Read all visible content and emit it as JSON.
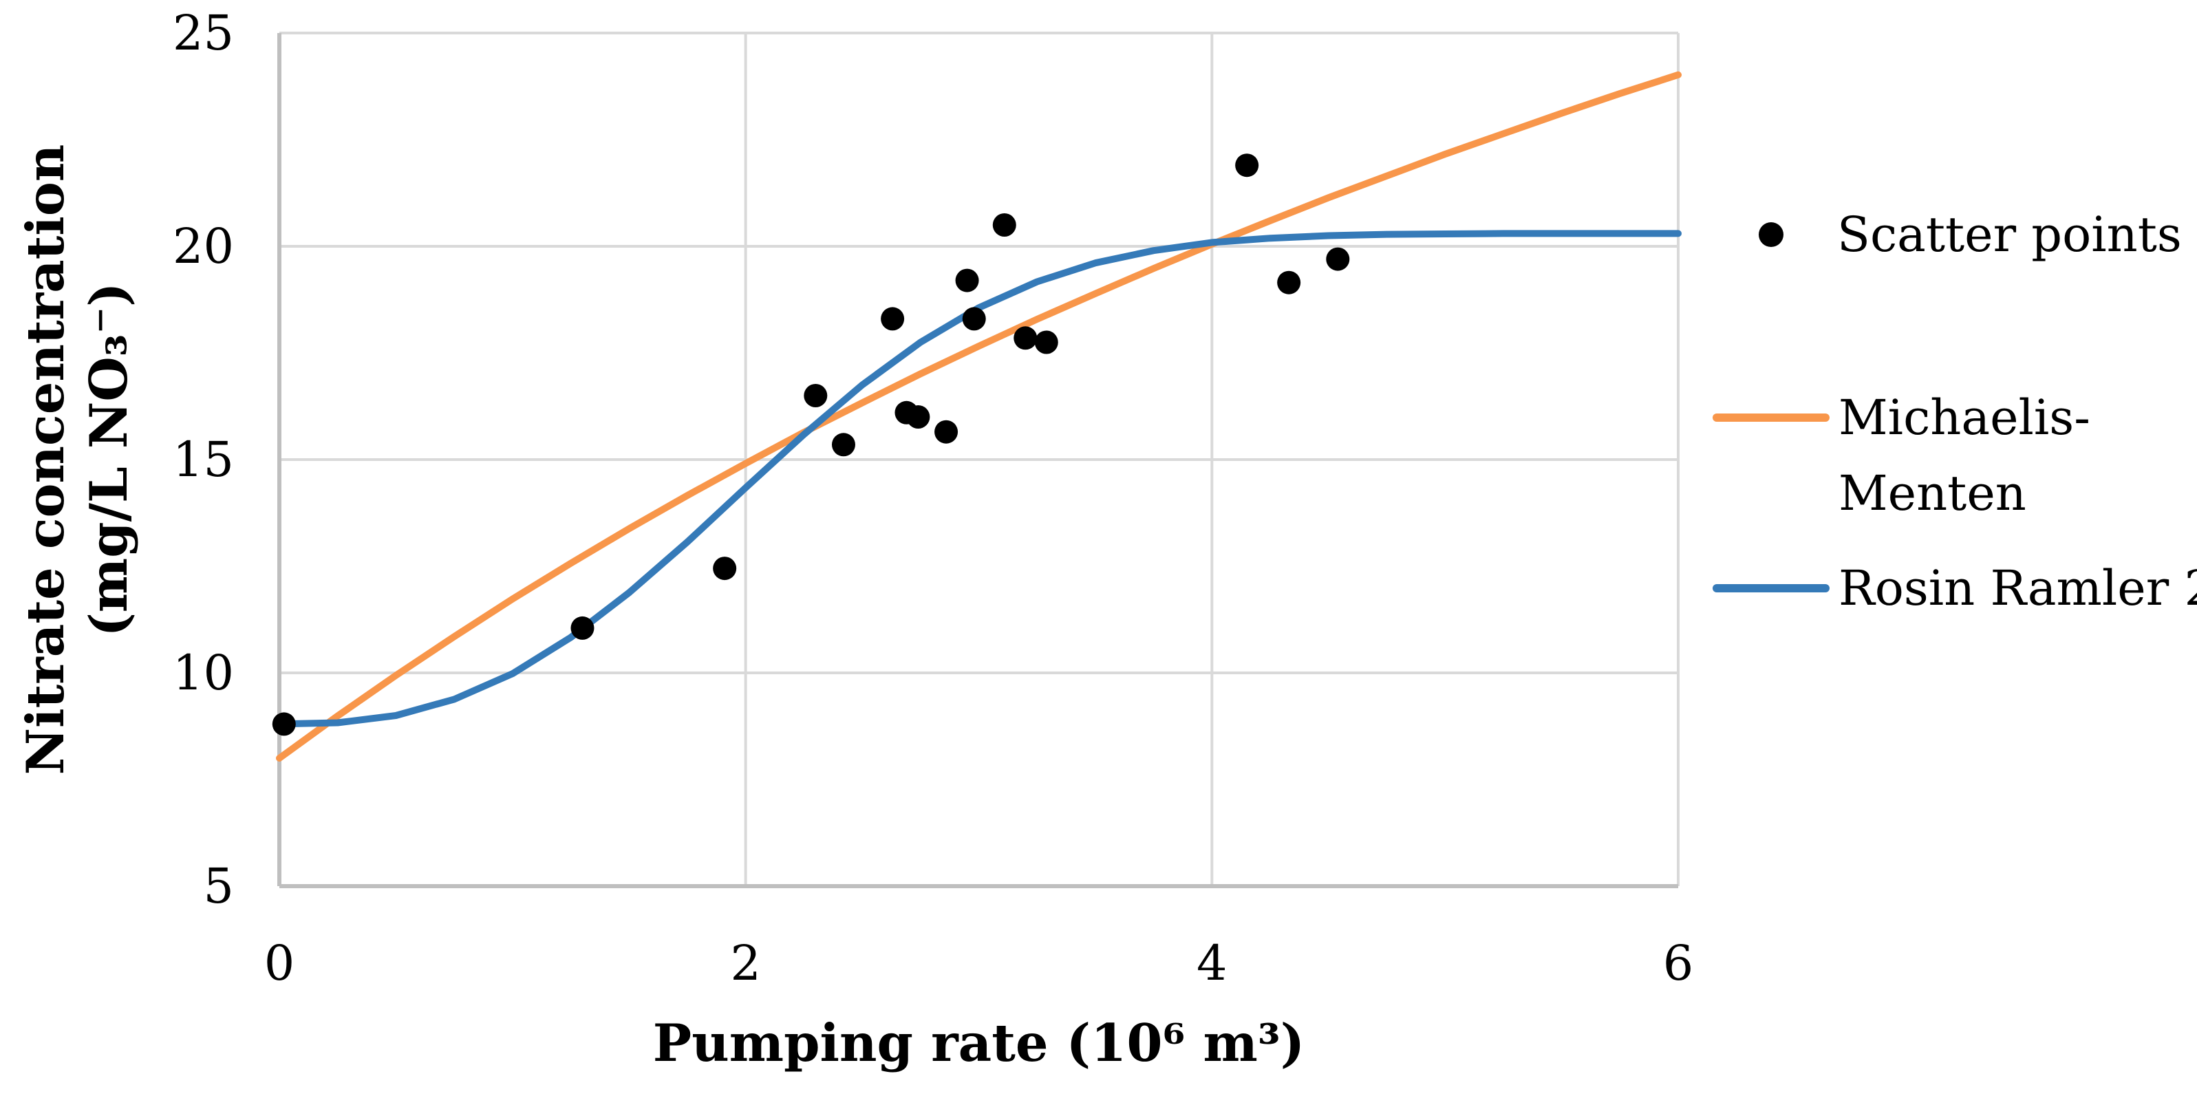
{
  "figure": {
    "background": "#FFFFFF"
  },
  "x_axis": {
    "title": "Pumping rate (10⁶ m³)",
    "tick_labels": [
      "0",
      "2",
      "4",
      "6"
    ]
  },
  "y_axis": {
    "title_line1": "Nitrate concentration",
    "title_line2": "(mg/L NO₃⁻)",
    "tick_labels": [
      "5",
      "10",
      "15",
      "20",
      "25"
    ]
  },
  "legend": {
    "scatter_label": "Scatter points",
    "michaelis_label_line1": "Michaelis-",
    "michaelis_label_line2": "Menten",
    "rosin_label": "Rosin Ramler 2"
  },
  "colors": {
    "scatter": "#000000",
    "michaelis": "#F8964A",
    "rosin": "#357AB8",
    "gridline": "#D9D9D9",
    "axis_line": "#BFBFBF",
    "text": "#000000"
  },
  "chart_data": {
    "type": "scatter",
    "title": "",
    "xlabel": "Pumping rate (10⁶ m³)",
    "ylabel": "Nitrate concentration (mg/L NO₃⁻)",
    "xlim": [
      0,
      6
    ],
    "ylim": [
      5,
      25
    ],
    "x_ticks": [
      0,
      2,
      4,
      6
    ],
    "y_ticks": [
      5,
      10,
      15,
      20,
      25
    ],
    "grid": true,
    "legend_position": "right",
    "series": [
      {
        "name": "Scatter points",
        "type": "scatter",
        "color": "#000000",
        "points": [
          [
            0.02,
            8.8
          ],
          [
            1.3,
            11.05
          ],
          [
            1.91,
            12.45
          ],
          [
            2.3,
            16.5
          ],
          [
            2.42,
            15.35
          ],
          [
            2.63,
            18.3
          ],
          [
            2.69,
            16.1
          ],
          [
            2.74,
            16.0
          ],
          [
            2.86,
            15.65
          ],
          [
            2.95,
            19.2
          ],
          [
            2.98,
            18.3
          ],
          [
            3.11,
            20.5
          ],
          [
            3.2,
            17.85
          ],
          [
            3.29,
            17.75
          ],
          [
            4.15,
            21.9
          ],
          [
            4.33,
            19.15
          ],
          [
            4.54,
            19.7
          ]
        ]
      },
      {
        "name": "Michaelis-Menten",
        "type": "line",
        "color": "#F8964A",
        "x_start": 0,
        "x_step": 0.25,
        "y": [
          8.0,
          8.99,
          9.94,
          10.85,
          11.73,
          12.57,
          13.38,
          14.16,
          14.91,
          15.64,
          16.33,
          17.01,
          17.66,
          18.29,
          18.89,
          19.48,
          20.05,
          20.6,
          21.14,
          21.65,
          22.16,
          22.64,
          23.12,
          23.58,
          24.02
        ]
      },
      {
        "name": "Rosin Ramler 2",
        "type": "line",
        "color": "#357AB8",
        "x_start": 0,
        "x_step": 0.25,
        "y": [
          8.8,
          8.83,
          9.0,
          9.38,
          9.98,
          10.83,
          11.88,
          13.07,
          14.34,
          15.59,
          16.75,
          17.75,
          18.56,
          19.17,
          19.61,
          19.9,
          20.09,
          20.19,
          20.25,
          20.28,
          20.29,
          20.3,
          20.3,
          20.3,
          20.3
        ]
      }
    ]
  }
}
